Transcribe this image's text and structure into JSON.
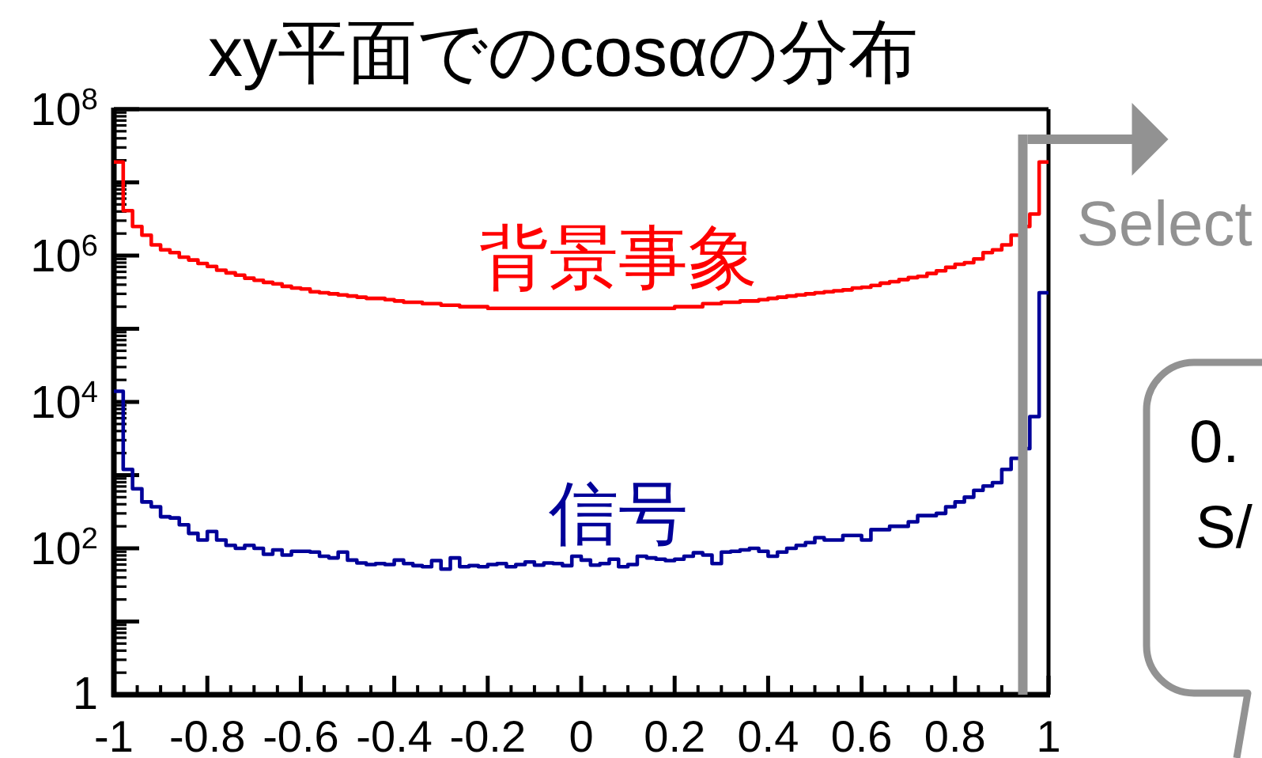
{
  "chart_data": {
    "type": "histogram",
    "title": "xy平面でのcosαの分布",
    "bins": [
      -1,
      -0.98,
      -0.96,
      -0.94,
      -0.92,
      -0.9,
      -0.88,
      -0.86,
      -0.84,
      -0.82,
      -0.8,
      -0.78,
      -0.76,
      -0.74,
      -0.72,
      -0.7,
      -0.68,
      -0.66,
      -0.64,
      -0.62,
      -0.6,
      -0.58,
      -0.56,
      -0.54,
      -0.52,
      -0.5,
      -0.48,
      -0.46,
      -0.44,
      -0.42,
      -0.4,
      -0.38,
      -0.36,
      -0.34,
      -0.32,
      -0.3,
      -0.28,
      -0.26,
      -0.24,
      -0.22,
      -0.2,
      -0.18,
      -0.16,
      -0.14,
      -0.12,
      -0.1,
      -0.08,
      -0.06,
      -0.04,
      -0.02,
      0,
      0.02,
      0.04,
      0.06,
      0.08,
      0.1,
      0.12,
      0.14,
      0.16,
      0.18,
      0.2,
      0.22,
      0.24,
      0.26,
      0.28,
      0.3,
      0.32,
      0.34,
      0.36,
      0.38,
      0.4,
      0.42,
      0.44,
      0.46,
      0.48,
      0.5,
      0.52,
      0.54,
      0.56,
      0.58,
      0.6,
      0.62,
      0.64,
      0.66,
      0.68,
      0.7,
      0.72,
      0.74,
      0.76,
      0.78,
      0.8,
      0.82,
      0.84,
      0.86,
      0.88,
      0.9,
      0.92,
      0.94,
      0.96,
      0.98,
      1
    ],
    "series": [
      {
        "name": "背景事象",
        "color": "#ff0000",
        "values": [
          19000000,
          4100000,
          2500000,
          1900000,
          1400000,
          1200000,
          1100000,
          950000,
          870000,
          780000,
          710000,
          630000,
          580000,
          540000,
          490000,
          460000,
          430000,
          410000,
          380000,
          360000,
          350000,
          320000,
          310000,
          300000,
          290000,
          280000,
          270000,
          260000,
          260000,
          250000,
          240000,
          230000,
          230000,
          220000,
          220000,
          210000,
          210000,
          200000,
          200000,
          200000,
          190000,
          190000,
          190000,
          190000,
          190000,
          190000,
          190000,
          190000,
          190000,
          190000,
          190000,
          190000,
          190000,
          190000,
          190000,
          190000,
          190000,
          190000,
          190000,
          190000,
          200000,
          200000,
          200000,
          220000,
          220000,
          230000,
          230000,
          240000,
          240000,
          250000,
          260000,
          270000,
          280000,
          290000,
          300000,
          310000,
          320000,
          330000,
          340000,
          360000,
          370000,
          390000,
          420000,
          440000,
          470000,
          500000,
          520000,
          570000,
          620000,
          690000,
          760000,
          800000,
          900000,
          1100000,
          1200000,
          1400000,
          1900000,
          2500000,
          3700000,
          19000000
        ]
      },
      {
        "name": "信号",
        "color": "#000099",
        "values": [
          14000,
          1200,
          650,
          430,
          370,
          270,
          260,
          210,
          160,
          130,
          170,
          130,
          110,
          100,
          110,
          100,
          83,
          95,
          81,
          91,
          91,
          89,
          78,
          74,
          89,
          69,
          63,
          60,
          62,
          60,
          69,
          62,
          58,
          56,
          68,
          52,
          74,
          56,
          58,
          56,
          60,
          62,
          56,
          60,
          65,
          59,
          63,
          62,
          58,
          78,
          69,
          59,
          62,
          71,
          56,
          60,
          78,
          74,
          71,
          68,
          71,
          78,
          87,
          81,
          62,
          89,
          91,
          95,
          100,
          91,
          78,
          89,
          100,
          110,
          120,
          140,
          130,
          130,
          150,
          150,
          130,
          180,
          180,
          200,
          200,
          230,
          280,
          280,
          300,
          370,
          430,
          500,
          620,
          710,
          790,
          1200,
          1700,
          2300,
          6300,
          310000
        ]
      }
    ],
    "xlim": [
      -1,
      1
    ],
    "xticks": [
      -1,
      -0.8,
      -0.6,
      -0.4,
      -0.2,
      0,
      0.2,
      0.4,
      0.6,
      0.8,
      1
    ],
    "ylim": [
      1,
      100000000
    ],
    "yticks": [
      1,
      {
        "value": 10,
        "label": null
      },
      {
        "value": 100,
        "label": "10$^{2}$"
      },
      {
        "value": 1000,
        "label": null
      },
      {
        "value": 10000,
        "label": "10$^{4}$"
      },
      {
        "value": 100000,
        "label": null
      },
      {
        "value": 1000000,
        "label": "10$^{6}$"
      },
      {
        "value": 10000000,
        "label": null
      },
      {
        "value": 100000000,
        "label": "10$^{8}$"
      }
    ],
    "log": "y",
    "ref_lines": [
      {
        "axis": "x",
        "value": 0.945,
        "label": "Select",
        "color": "#929292"
      }
    ],
    "annotations": [
      "0.",
      "S/"
    ]
  }
}
